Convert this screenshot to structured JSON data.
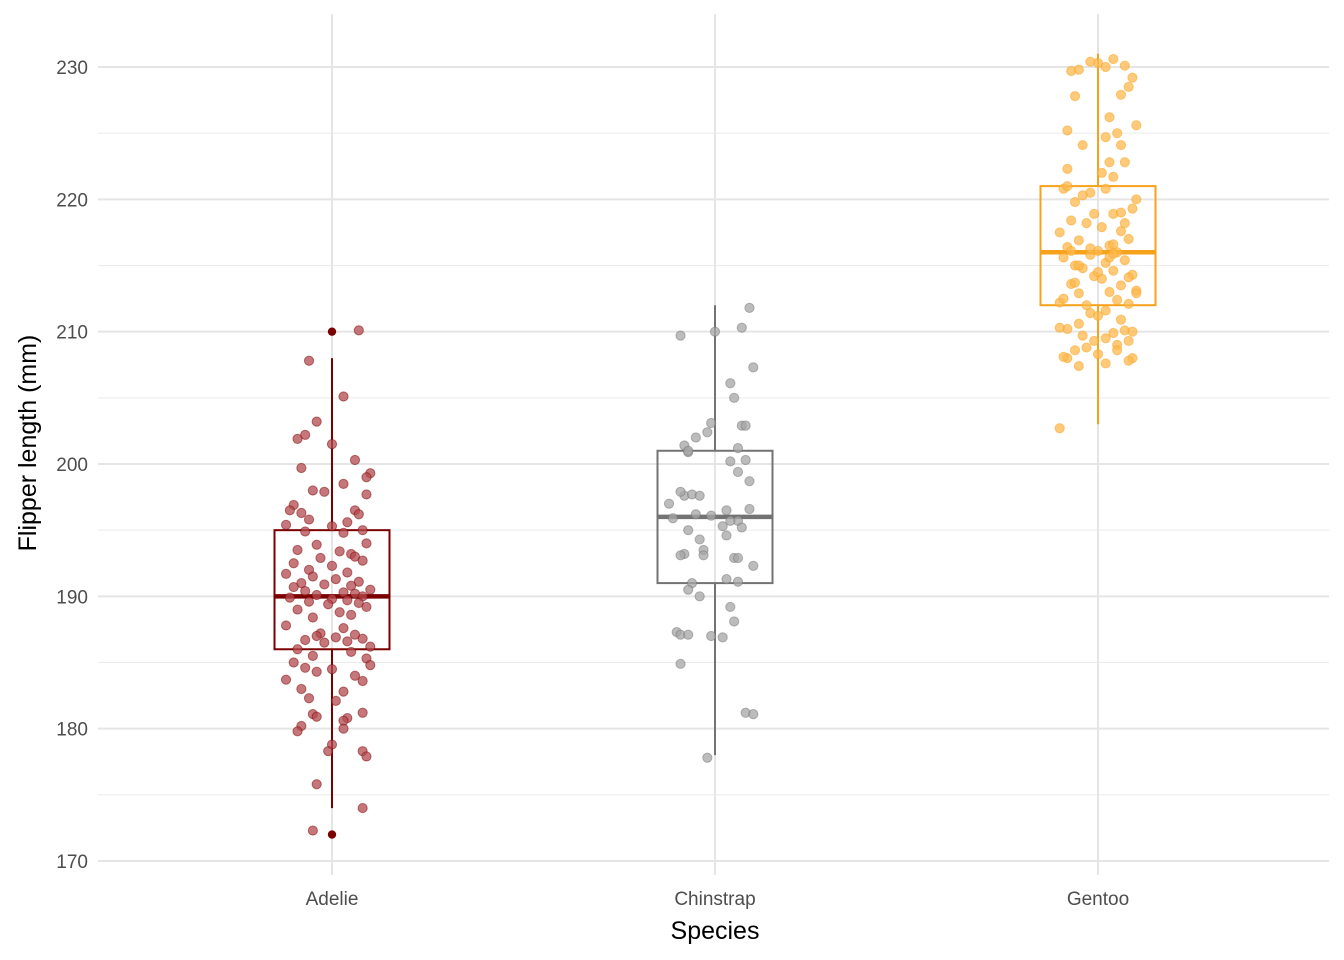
{
  "chart_data": {
    "type": "boxplot",
    "title": "",
    "xlabel": "Species",
    "ylabel": "Flipper length (mm)",
    "ylim": [
      169,
      231
    ],
    "yticks": [
      170,
      180,
      190,
      200,
      210,
      220,
      230
    ],
    "yminor": [
      175,
      185,
      195,
      205,
      215,
      225
    ],
    "grid": true,
    "legend": "none",
    "categories": [
      "Adelie",
      "Chinstrap",
      "Gentoo"
    ],
    "colors": {
      "Adelie": "#7b0000",
      "Chinstrap": "#737373",
      "Gentoo": "#f7a21b"
    },
    "point_fill": {
      "Adelie": "#b34a4f",
      "Chinstrap": "#a6a6a6",
      "Gentoo": "#ffb84d"
    },
    "boxes": [
      {
        "category": "Adelie",
        "min": 174,
        "q1": 186,
        "median": 190,
        "q3": 195,
        "max": 208,
        "outliers": [
          210,
          172
        ]
      },
      {
        "category": "Chinstrap",
        "min": 178,
        "q1": 191,
        "median": 196,
        "q3": 201,
        "max": 212,
        "outliers": []
      },
      {
        "category": "Gentoo",
        "min": 203,
        "q1": 212,
        "median": 216,
        "q3": 221,
        "max": 231,
        "outliers": []
      }
    ],
    "points": {
      "Adelie": [
        [
          0.07,
          210.1
        ],
        [
          -0.06,
          207.8
        ],
        [
          0.03,
          205.1
        ],
        [
          -0.04,
          203.2
        ],
        [
          -0.07,
          202.2
        ],
        [
          -0.09,
          201.9
        ],
        [
          0.0,
          201.5
        ],
        [
          0.06,
          200.3
        ],
        [
          -0.08,
          199.7
        ],
        [
          0.1,
          199.3
        ],
        [
          0.09,
          199.0
        ],
        [
          0.03,
          198.5
        ],
        [
          -0.05,
          198.0
        ],
        [
          -0.02,
          197.9
        ],
        [
          0.09,
          197.7
        ],
        [
          -0.1,
          196.9
        ],
        [
          0.06,
          196.5
        ],
        [
          -0.11,
          196.5
        ],
        [
          -0.08,
          196.3
        ],
        [
          0.07,
          196.2
        ],
        [
          -0.06,
          195.8
        ],
        [
          0.04,
          195.6
        ],
        [
          -0.12,
          195.4
        ],
        [
          0.0,
          195.3
        ],
        [
          0.08,
          195.0
        ],
        [
          -0.07,
          194.9
        ],
        [
          0.03,
          194.8
        ],
        [
          0.09,
          194.0
        ],
        [
          -0.04,
          193.9
        ],
        [
          -0.09,
          193.5
        ],
        [
          0.02,
          193.4
        ],
        [
          0.05,
          193.2
        ],
        [
          0.06,
          193.0
        ],
        [
          -0.03,
          192.9
        ],
        [
          0.08,
          192.7
        ],
        [
          -0.1,
          192.5
        ],
        [
          0.0,
          192.3
        ],
        [
          -0.06,
          192.0
        ],
        [
          0.04,
          191.8
        ],
        [
          -0.12,
          191.7
        ],
        [
          -0.05,
          191.5
        ],
        [
          0.01,
          191.3
        ],
        [
          0.07,
          191.1
        ],
        [
          -0.08,
          191.0
        ],
        [
          -0.02,
          190.9
        ],
        [
          0.05,
          190.8
        ],
        [
          -0.1,
          190.7
        ],
        [
          0.1,
          190.5
        ],
        [
          -0.07,
          190.4
        ],
        [
          0.03,
          190.3
        ],
        [
          0.06,
          190.2
        ],
        [
          -0.04,
          190.1
        ],
        [
          0.08,
          190.0
        ],
        [
          -0.11,
          189.9
        ],
        [
          0.0,
          189.8
        ],
        [
          0.04,
          189.7
        ],
        [
          -0.06,
          189.6
        ],
        [
          0.07,
          189.5
        ],
        [
          -0.01,
          189.4
        ],
        [
          0.09,
          189.2
        ],
        [
          -0.09,
          189.0
        ],
        [
          0.02,
          188.8
        ],
        [
          0.05,
          188.6
        ],
        [
          -0.05,
          188.4
        ],
        [
          -0.12,
          187.8
        ],
        [
          0.03,
          187.6
        ],
        [
          -0.03,
          187.2
        ],
        [
          0.06,
          187.1
        ],
        [
          -0.04,
          187.0
        ],
        [
          0.01,
          186.9
        ],
        [
          0.08,
          186.8
        ],
        [
          -0.07,
          186.7
        ],
        [
          0.04,
          186.6
        ],
        [
          -0.02,
          186.5
        ],
        [
          0.1,
          186.2
        ],
        [
          -0.09,
          186.0
        ],
        [
          0.05,
          185.8
        ],
        [
          -0.05,
          185.5
        ],
        [
          0.09,
          185.3
        ],
        [
          -0.1,
          185.0
        ],
        [
          0.1,
          184.8
        ],
        [
          -0.07,
          184.6
        ],
        [
          0.0,
          184.5
        ],
        [
          -0.04,
          184.3
        ],
        [
          0.06,
          184.0
        ],
        [
          -0.12,
          183.7
        ],
        [
          0.08,
          183.6
        ],
        [
          -0.08,
          183.0
        ],
        [
          0.03,
          182.8
        ],
        [
          -0.06,
          182.3
        ],
        [
          0.01,
          182.1
        ],
        [
          0.08,
          181.2
        ],
        [
          -0.05,
          181.1
        ],
        [
          -0.04,
          180.9
        ],
        [
          0.04,
          180.8
        ],
        [
          0.03,
          180.6
        ],
        [
          -0.08,
          180.2
        ],
        [
          0.03,
          180.0
        ],
        [
          -0.09,
          179.8
        ],
        [
          0.0,
          178.8
        ],
        [
          -0.01,
          178.3
        ],
        [
          0.08,
          178.3
        ],
        [
          0.09,
          177.9
        ],
        [
          -0.04,
          175.8
        ],
        [
          0.08,
          174.0
        ],
        [
          -0.05,
          172.3
        ]
      ],
      "Chinstrap": [
        [
          0.09,
          211.8
        ],
        [
          0.07,
          210.3
        ],
        [
          -0.09,
          209.7
        ],
        [
          0.0,
          210.0
        ],
        [
          0.1,
          207.3
        ],
        [
          0.04,
          206.1
        ],
        [
          0.05,
          205.0
        ],
        [
          -0.01,
          203.1
        ],
        [
          0.07,
          202.9
        ],
        [
          0.08,
          202.9
        ],
        [
          -0.05,
          202.0
        ],
        [
          -0.02,
          202.4
        ],
        [
          -0.08,
          201.4
        ],
        [
          0.04,
          200.2
        ],
        [
          -0.07,
          200.9
        ],
        [
          0.06,
          199.4
        ],
        [
          -0.08,
          197.6
        ],
        [
          -0.09,
          197.9
        ],
        [
          -0.06,
          197.7
        ],
        [
          -0.12,
          197.0
        ],
        [
          0.09,
          198.7
        ],
        [
          -0.04,
          197.6
        ],
        [
          0.09,
          196.6
        ],
        [
          -0.01,
          196.1
        ],
        [
          0.06,
          195.7
        ],
        [
          0.07,
          195.2
        ],
        [
          0.04,
          195.7
        ],
        [
          -0.07,
          195.0
        ],
        [
          0.02,
          195.3
        ],
        [
          -0.08,
          193.2
        ],
        [
          -0.09,
          193.1
        ],
        [
          -0.04,
          194.3
        ],
        [
          0.1,
          192.3
        ],
        [
          0.05,
          192.9
        ],
        [
          -0.03,
          193.5
        ],
        [
          0.03,
          191.3
        ],
        [
          -0.06,
          191.0
        ],
        [
          0.06,
          191.1
        ],
        [
          -0.07,
          190.5
        ],
        [
          -0.04,
          190.0
        ],
        [
          0.04,
          189.2
        ],
        [
          0.05,
          188.1
        ],
        [
          -0.1,
          187.3
        ],
        [
          -0.09,
          187.1
        ],
        [
          -0.07,
          187.1
        ],
        [
          0.02,
          186.9
        ],
        [
          -0.01,
          187.0
        ],
        [
          -0.09,
          184.9
        ],
        [
          0.08,
          181.2
        ],
        [
          0.1,
          181.1
        ],
        [
          -0.02,
          177.8
        ],
        [
          0.08,
          200.3
        ],
        [
          0.03,
          196.5
        ],
        [
          0.03,
          194.6
        ],
        [
          -0.11,
          195.9
        ],
        [
          -0.05,
          196.2
        ],
        [
          0.06,
          192.9
        ],
        [
          -0.03,
          193.1
        ],
        [
          0.06,
          201.2
        ],
        [
          -0.07,
          201.0
        ]
      ],
      "Gentoo": [
        [
          0.04,
          230.6
        ],
        [
          0.0,
          230.3
        ],
        [
          0.02,
          230.0
        ],
        [
          -0.07,
          229.7
        ],
        [
          -0.05,
          229.8
        ],
        [
          0.07,
          230.1
        ],
        [
          -0.02,
          230.4
        ],
        [
          0.09,
          229.2
        ],
        [
          0.08,
          228.5
        ],
        [
          0.06,
          227.9
        ],
        [
          -0.06,
          227.8
        ],
        [
          0.03,
          226.2
        ],
        [
          0.1,
          225.6
        ],
        [
          -0.08,
          225.2
        ],
        [
          0.05,
          225.0
        ],
        [
          0.06,
          224.1
        ],
        [
          0.02,
          224.7
        ],
        [
          -0.04,
          224.1
        ],
        [
          0.07,
          222.8
        ],
        [
          -0.08,
          222.3
        ],
        [
          0.04,
          221.7
        ],
        [
          -0.02,
          220.5
        ],
        [
          -0.09,
          220.8
        ],
        [
          0.02,
          220.8
        ],
        [
          0.1,
          220.0
        ],
        [
          -0.06,
          219.8
        ],
        [
          0.09,
          219.3
        ],
        [
          -0.01,
          218.9
        ],
        [
          0.04,
          218.9
        ],
        [
          -0.07,
          218.4
        ],
        [
          -0.03,
          218.2
        ],
        [
          0.01,
          217.9
        ],
        [
          -0.1,
          217.5
        ],
        [
          0.06,
          217.6
        ],
        [
          0.08,
          217.0
        ],
        [
          -0.05,
          216.9
        ],
        [
          0.03,
          216.5
        ],
        [
          -0.08,
          216.4
        ],
        [
          0.0,
          216.1
        ],
        [
          0.05,
          216.0
        ],
        [
          -0.02,
          215.8
        ],
        [
          -0.09,
          215.6
        ],
        [
          0.07,
          215.4
        ],
        [
          0.02,
          215.2
        ],
        [
          -0.06,
          215.0
        ],
        [
          0.04,
          214.6
        ],
        [
          -0.04,
          214.8
        ],
        [
          0.09,
          214.3
        ],
        [
          -0.01,
          214.2
        ],
        [
          0.01,
          214.0
        ],
        [
          0.06,
          213.5
        ],
        [
          -0.07,
          213.6
        ],
        [
          0.03,
          213.0
        ],
        [
          0.1,
          213.1
        ],
        [
          -0.05,
          212.9
        ],
        [
          0.05,
          212.4
        ],
        [
          -0.1,
          212.2
        ],
        [
          -0.03,
          212.0
        ],
        [
          0.08,
          212.1
        ],
        [
          0.02,
          211.6
        ],
        [
          -0.02,
          211.4
        ],
        [
          0.0,
          211.2
        ],
        [
          0.06,
          210.9
        ],
        [
          -0.05,
          210.6
        ],
        [
          0.07,
          210.1
        ],
        [
          0.09,
          210.0
        ],
        [
          -0.08,
          210.2
        ],
        [
          0.04,
          209.9
        ],
        [
          -0.04,
          209.7
        ],
        [
          0.02,
          209.5
        ],
        [
          0.08,
          209.3
        ],
        [
          -0.1,
          210.3
        ],
        [
          0.05,
          209.0
        ],
        [
          -0.03,
          208.8
        ],
        [
          -0.06,
          208.6
        ],
        [
          0.0,
          208.3
        ],
        [
          -0.08,
          208.0
        ],
        [
          -0.09,
          208.1
        ],
        [
          0.09,
          208.0
        ],
        [
          0.08,
          207.8
        ],
        [
          0.02,
          207.6
        ],
        [
          -0.05,
          207.4
        ],
        [
          -0.1,
          202.7
        ],
        [
          0.05,
          208.6
        ],
        [
          -0.01,
          209.3
        ],
        [
          0.04,
          216.6
        ],
        [
          0.06,
          219.0
        ],
        [
          -0.04,
          220.3
        ],
        [
          -0.06,
          213.7
        ],
        [
          0.0,
          214.5
        ],
        [
          0.03,
          215.6
        ],
        [
          -0.07,
          216.1
        ],
        [
          0.07,
          218.2
        ],
        [
          -0.08,
          221.0
        ],
        [
          0.01,
          222.0
        ],
        [
          0.03,
          222.8
        ],
        [
          -0.02,
          216.3
        ],
        [
          0.04,
          215.9
        ],
        [
          -0.05,
          215.0
        ],
        [
          0.08,
          214.1
        ],
        [
          0.1,
          212.9
        ],
        [
          -0.09,
          212.5
        ]
      ]
    }
  }
}
